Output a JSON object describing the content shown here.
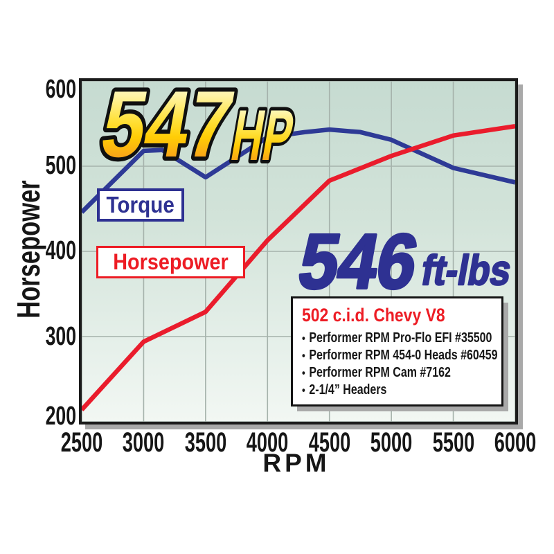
{
  "chart_data": {
    "type": "line",
    "xlabel": "RPM",
    "ylabel": "Horsepower",
    "xlim": [
      2500,
      6000
    ],
    "ylim": [
      200,
      600
    ],
    "x_ticks": [
      "2500",
      "3000",
      "3500",
      "4000",
      "4500",
      "5000",
      "5500",
      "6000"
    ],
    "y_ticks": [
      "600",
      "500",
      "400",
      "300",
      "200"
    ],
    "grid": true,
    "legend_position": "inside-upper-left",
    "badges": {
      "hp_value": "547",
      "hp_unit": "HP",
      "tq_value": "546",
      "tq_unit": "ft-lbs"
    },
    "legend": [
      {
        "label": "Torque",
        "color": "#2e3192"
      },
      {
        "label": "Horsepower",
        "color": "#ed1c24"
      }
    ],
    "series": [
      {
        "name": "Torque",
        "unit": "ft-lbs",
        "color": "#2e3a96",
        "points": [
          [
            2500,
            446
          ],
          [
            3000,
            518
          ],
          [
            3150,
            519
          ],
          [
            3500,
            487
          ],
          [
            4000,
            534
          ],
          [
            4300,
            540
          ],
          [
            4500,
            543
          ],
          [
            4750,
            540
          ],
          [
            5000,
            531
          ],
          [
            5500,
            498
          ],
          [
            6000,
            481
          ]
        ]
      },
      {
        "name": "Horsepower",
        "unit": "hp",
        "color": "#ea1c2c",
        "points": [
          [
            2500,
            214
          ],
          [
            3000,
            294
          ],
          [
            3500,
            329
          ],
          [
            4000,
            413
          ],
          [
            4500,
            483
          ],
          [
            5000,
            512
          ],
          [
            5500,
            536
          ],
          [
            6000,
            547
          ]
        ]
      }
    ]
  },
  "info_box": {
    "title": "502 c.i.d. Chevy V8",
    "bullet": "•",
    "items": [
      "Performer RPM Pro-Flo EFI #35500",
      "Performer RPM 454-0 Heads #60459",
      "Performer RPM Cam #7162",
      "2-1/4” Headers"
    ]
  },
  "colors": {
    "plot_bg_top": "#c6dbd1",
    "plot_bg_bottom": "#f2f7f3",
    "grid": "#a5b2ab",
    "border": "#1b1b1b",
    "shadow": "#a9a9a9",
    "gold_top": "#fffde9",
    "gold_mid": "#ffd400",
    "gold_bottom": "#f47b20",
    "blue": "#2e3192",
    "red": "#ed1c24"
  }
}
